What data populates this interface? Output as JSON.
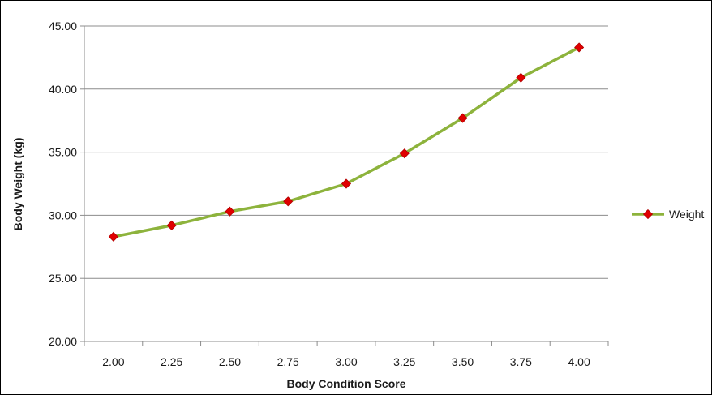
{
  "chart_data": {
    "type": "line",
    "title": "",
    "xlabel": "Body Condition Score",
    "ylabel": "Body Weight (kg)",
    "categories": [
      "2.00",
      "2.25",
      "2.50",
      "2.75",
      "3.00",
      "3.25",
      "3.50",
      "3.75",
      "4.00"
    ],
    "y_tick_labels": [
      "20.00",
      "25.00",
      "30.00",
      "35.00",
      "40.00",
      "45.00"
    ],
    "ylim": [
      20,
      45
    ],
    "y_major_step": 5,
    "grid": "horizontal",
    "legend_position": "right",
    "series": [
      {
        "name": "Weight",
        "values": [
          28.3,
          29.2,
          30.3,
          31.1,
          32.5,
          34.9,
          37.7,
          40.9,
          43.3
        ],
        "line_color": "#8db33c",
        "marker": "diamond",
        "marker_color": "#e00000"
      }
    ]
  }
}
